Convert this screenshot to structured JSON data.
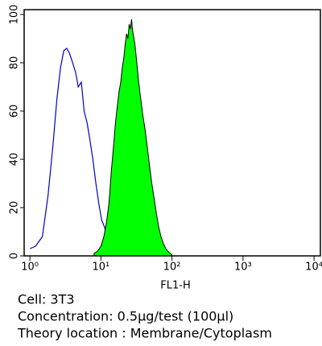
{
  "chart_data": {
    "type": "area",
    "xlabel": "FL1-H",
    "xscale": "log",
    "xlim": [
      0.83,
      12300
    ],
    "xticks": [
      {
        "value": 1,
        "label": "10⁰"
      },
      {
        "value": 10,
        "label": "10¹"
      },
      {
        "value": 100,
        "label": "10²"
      },
      {
        "value": 1000,
        "label": "10³"
      },
      {
        "value": 10000,
        "label": "10⁴"
      }
    ],
    "ylim": [
      0,
      102
    ],
    "yticks": [
      0,
      20,
      40,
      60,
      80,
      100
    ],
    "series": [
      {
        "color": "#0000cc",
        "fill": false,
        "x": [
          1,
          1.2,
          1.5,
          1.8,
          2.1,
          2.4,
          2.7,
          3.0,
          3.3,
          3.6,
          4.0,
          4.4,
          4.8,
          5.3,
          5.8,
          6.4,
          7,
          7.7,
          8.5,
          9.3,
          10.2,
          11.2,
          12.3,
          13.5,
          15,
          17,
          20
        ],
        "values": [
          3,
          4,
          8,
          25,
          45,
          65,
          78,
          85,
          86,
          84,
          80,
          76,
          70,
          72,
          60,
          55,
          48,
          40,
          30,
          22,
          15,
          12,
          8,
          5,
          3,
          2,
          1
        ]
      },
      {
        "color": "#00ff00",
        "fill": true,
        "outline": "#000000",
        "x": [
          8,
          9,
          10,
          11,
          12,
          13,
          14,
          15,
          16,
          17,
          18,
          19,
          20,
          21,
          22,
          23,
          24,
          25,
          26,
          27,
          28,
          30,
          32,
          34,
          36,
          39,
          42,
          45,
          48,
          52,
          56,
          60,
          65,
          70,
          76,
          82,
          90,
          100
        ],
        "values": [
          1,
          2,
          4,
          8,
          14,
          22,
          35,
          45,
          55,
          62,
          68,
          72,
          78,
          82,
          88,
          92,
          90,
          96,
          94,
          98,
          93,
          88,
          80,
          72,
          66,
          58,
          52,
          45,
          38,
          30,
          24,
          18,
          12,
          8,
          5,
          3,
          1.5,
          0.5
        ]
      }
    ],
    "notes": [
      "Cell: 3T3",
      "Concentration: 0.5µg/test (100µl)",
      "Theory location : Membrane/Cytoplasm"
    ]
  }
}
